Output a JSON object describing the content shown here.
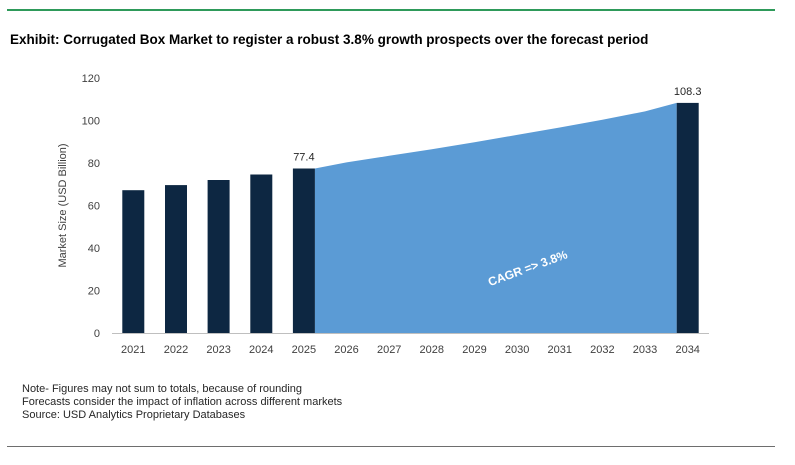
{
  "title": "Exhibit: Corrugated Box Market to register a robust 3.8% growth prospects over the forecast period",
  "notes": [
    "Note- Figures may not sum to totals, because of rounding",
    "Forecasts consider the impact of inflation across different markets",
    "Source: USD Analytics Proprietary Databases"
  ],
  "colors": {
    "bar": "#0d2742",
    "area": "#5b9bd5",
    "rule": "#2e9a5a"
  },
  "chart_data": {
    "type": "bar",
    "title": "Exhibit: Corrugated Box Market to register a robust 3.8% growth prospects over the forecast period",
    "xlabel": "",
    "ylabel": "Market Size (USD Billion)",
    "ylim": [
      0,
      120
    ],
    "yticks": [
      0,
      20,
      40,
      60,
      80,
      100,
      120
    ],
    "categories": [
      "2021",
      "2022",
      "2023",
      "2024",
      "2025",
      "2026",
      "2027",
      "2028",
      "2029",
      "2030",
      "2031",
      "2032",
      "2033",
      "2034"
    ],
    "bars": [
      {
        "x": "2021",
        "value": 67.2
      },
      {
        "x": "2022",
        "value": 69.6
      },
      {
        "x": "2023",
        "value": 72.0
      },
      {
        "x": "2024",
        "value": 74.6
      },
      {
        "x": "2025",
        "value": 77.4,
        "label": "77.4"
      },
      {
        "x": "2034",
        "value": 108.3,
        "label": "108.3"
      }
    ],
    "area": {
      "x": [
        "2025",
        "2026",
        "2027",
        "2028",
        "2029",
        "2030",
        "2031",
        "2032",
        "2033",
        "2034"
      ],
      "values": [
        77.4,
        80.3,
        83.4,
        86.5,
        89.8,
        93.2,
        96.7,
        100.4,
        104.3,
        108.3
      ]
    },
    "annotation": "CAGR => 3.8%",
    "grid": false,
    "legend": "none"
  }
}
